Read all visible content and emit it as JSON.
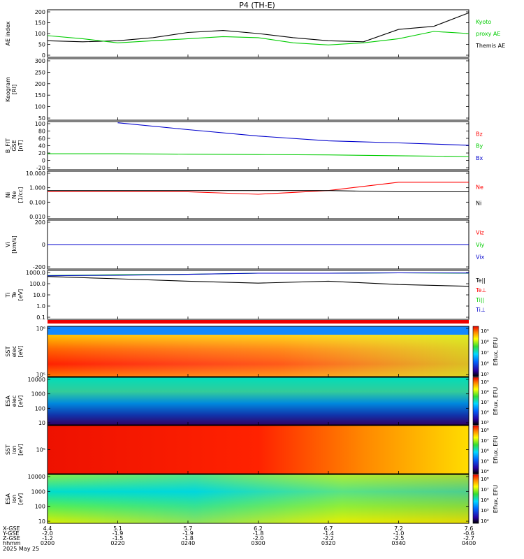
{
  "title": "P4 (TH-E)",
  "colors": {
    "black": "#000000",
    "red": "#ff0000",
    "green": "#00cc00",
    "blue": "#0000cc"
  },
  "panels": [
    {
      "id": "ae",
      "ylabel": [
        "AE index"
      ],
      "ytick_labels": [
        "200",
        "150",
        "100",
        "50",
        "0"
      ],
      "legend": [
        {
          "text": "Kyoto",
          "color": "#00cc00"
        },
        {
          "text": "proxy AE",
          "color": "#00cc00"
        },
        {
          "text": "Themis AE",
          "color": "#000000"
        }
      ]
    },
    {
      "id": "keogram",
      "ylabel": [
        "Keogram",
        "[RI]"
      ],
      "ytick_labels": [
        "300",
        "250",
        "200",
        "150",
        "100",
        "50"
      ],
      "legend": []
    },
    {
      "id": "bfield",
      "ylabel": [
        "B_FIT",
        "GSE",
        "[nT]"
      ],
      "ytick_labels": [
        "100",
        "80",
        "60",
        "40",
        "20",
        "0",
        "-20"
      ],
      "legend": [
        {
          "text": "Bz",
          "color": "#ff0000"
        },
        {
          "text": "By",
          "color": "#00cc00"
        },
        {
          "text": "Bx",
          "color": "#0000cc"
        }
      ]
    },
    {
      "id": "density",
      "ylabel": [
        "Ni",
        "Ne",
        "[1/cc]"
      ],
      "ytick_labels": [
        "10.000",
        "1.000",
        "0.100",
        "0.010"
      ],
      "legend": [
        {
          "text": "Ne",
          "color": "#ff0000"
        },
        {
          "text": "Ni",
          "color": "#000000"
        }
      ]
    },
    {
      "id": "velocity",
      "ylabel": [
        "Vi",
        "[km/s]"
      ],
      "ytick_labels": [
        "200",
        "0",
        "-200"
      ],
      "legend": [
        {
          "text": "Viz",
          "color": "#ff0000"
        },
        {
          "text": "Viy",
          "color": "#00cc00"
        },
        {
          "text": "Vix",
          "color": "#0000cc"
        }
      ]
    },
    {
      "id": "temp",
      "ylabel": [
        "Ti",
        "Te",
        "[eV]"
      ],
      "ytick_labels": [
        "1000.0",
        "100.0",
        "10.0",
        "1.0",
        "0.1"
      ],
      "legend": [
        {
          "text": "Te||",
          "color": "#000000"
        },
        {
          "text": "Te⊥",
          "color": "#ff0000"
        },
        {
          "text": "Ti||",
          "color": "#00cc00"
        },
        {
          "text": "Ti⊥",
          "color": "#0000cc"
        }
      ]
    },
    {
      "id": "sst_e",
      "ylabel": [
        "SST",
        "elec",
        "[eV]"
      ],
      "ytick_labels": [
        "10⁶",
        "10⁵"
      ],
      "colorbar_label": "Eflux, EFU",
      "colorbar_ticks": [
        "10⁹",
        "10⁸",
        "10⁷",
        "10⁶",
        "10⁵"
      ]
    },
    {
      "id": "esa_e",
      "ylabel": [
        "ESA",
        "elec",
        "[eV]"
      ],
      "ytick_labels": [
        "10000",
        "1000",
        "100",
        "10"
      ],
      "colorbar_label": "Eflux, EFU",
      "colorbar_ticks": [
        "10⁹",
        "10⁸",
        "10⁷",
        "10⁶",
        "10⁵"
      ]
    },
    {
      "id": "sst_i",
      "ylabel": [
        "SST",
        "ion",
        "[eV]"
      ],
      "ytick_labels": [
        "10⁵"
      ],
      "colorbar_label": "Eflux, EFU",
      "colorbar_ticks": [
        "10⁸",
        "10⁷",
        "10⁶",
        "10⁵",
        "10⁴"
      ]
    },
    {
      "id": "esa_i",
      "ylabel": [
        "ESA",
        "ion",
        "[eV]"
      ],
      "ytick_labels": [
        "10000",
        "1000",
        "100",
        "10"
      ],
      "colorbar_label": "Eflux, EFU",
      "colorbar_ticks": [
        "10⁸",
        "10⁷",
        "10⁶",
        "10⁵",
        "10⁴"
      ]
    }
  ],
  "xaxis": {
    "row_labels": [
      "X-GSE",
      "Y-GSE",
      "Z-GSE",
      "hhmm",
      "2025 May 25"
    ],
    "ticks": [
      {
        "x": "4.4",
        "y": "-2.0",
        "z": "-1.2",
        "t": "0200"
      },
      {
        "x": "5.1",
        "y": "-1.9",
        "z": "-1.5",
        "t": "0220"
      },
      {
        "x": "5.7",
        "y": "-1.9",
        "z": "-1.8",
        "t": "0240"
      },
      {
        "x": "6.2",
        "y": "-1.8",
        "z": "-2.0",
        "t": "0300"
      },
      {
        "x": "6.7",
        "y": "-1.4",
        "z": "-2.2",
        "t": "0320"
      },
      {
        "x": "7.2",
        "y": "-1.0",
        "z": "-2.5",
        "t": "0340"
      },
      {
        "x": "7.6",
        "y": "-0.6",
        "z": "-2.7",
        "t": "0400"
      }
    ]
  },
  "chart_data": [
    {
      "type": "line",
      "panel": "ae",
      "ylim": [
        -20,
        210
      ],
      "x": [
        "0200",
        "0210",
        "0220",
        "0230",
        "0240",
        "0250",
        "0300",
        "0310",
        "0320",
        "0330",
        "0340",
        "0350",
        "0400"
      ],
      "series": [
        {
          "name": "Themis AE",
          "values": [
            60,
            55,
            60,
            75,
            100,
            110,
            95,
            75,
            60,
            55,
            115,
            130,
            195
          ]
        },
        {
          "name": "Kyoto proxy AE",
          "values": [
            85,
            70,
            50,
            60,
            70,
            80,
            75,
            50,
            40,
            50,
            70,
            105,
            95
          ]
        }
      ]
    },
    {
      "type": "line",
      "panel": "bfield",
      "ylim": [
        -20,
        100
      ],
      "x": [
        "0200",
        "0220",
        "0240",
        "0300",
        "0320",
        "0340",
        "0400"
      ],
      "series": [
        {
          "name": "Bz",
          "values": [
            null,
            97,
            80,
            64,
            52,
            47,
            41
          ]
        },
        {
          "name": "By",
          "values": [
            20,
            20,
            19,
            18,
            17,
            15,
            13
          ]
        }
      ]
    },
    {
      "type": "line",
      "panel": "density",
      "ylim": [
        0.01,
        10
      ],
      "x": [
        "0200",
        "0220",
        "0240",
        "0300",
        "0320",
        "0340",
        "0400"
      ],
      "series": [
        {
          "name": "Ne",
          "values": [
            0.5,
            0.5,
            0.5,
            0.35,
            0.6,
            2.0,
            2.0
          ]
        },
        {
          "name": "Ni",
          "values": [
            0.6,
            0.6,
            0.6,
            0.6,
            0.6,
            0.5,
            0.5
          ]
        }
      ]
    },
    {
      "type": "line",
      "panel": "velocity",
      "ylim": [
        -400,
        400
      ],
      "x": [
        "0200",
        "0230",
        "0300",
        "0330",
        "0400"
      ],
      "series": [
        {
          "name": "Viz",
          "values": [
            0,
            0,
            0,
            0,
            0
          ]
        },
        {
          "name": "Viy",
          "values": [
            0,
            0,
            0,
            0,
            0
          ]
        },
        {
          "name": "Vix",
          "values": [
            0,
            0,
            0,
            0,
            0
          ]
        }
      ]
    },
    {
      "type": "line",
      "panel": "temp",
      "ylim": [
        0.05,
        5000
      ],
      "log": true,
      "x": [
        "0200",
        "0220",
        "0240",
        "0300",
        "0320",
        "0340",
        "0400"
      ],
      "series": [
        {
          "name": "Te||",
          "values": [
            1200,
            700,
            400,
            250,
            400,
            180,
            120
          ]
        },
        {
          "name": "Ti||",
          "values": [
            1500,
            1800,
            2000,
            2600,
            2600,
            2800,
            2600
          ]
        },
        {
          "name": "Ti⊥",
          "values": [
            1400,
            1600,
            2000,
            2600,
            2600,
            2800,
            2700
          ]
        }
      ]
    }
  ]
}
